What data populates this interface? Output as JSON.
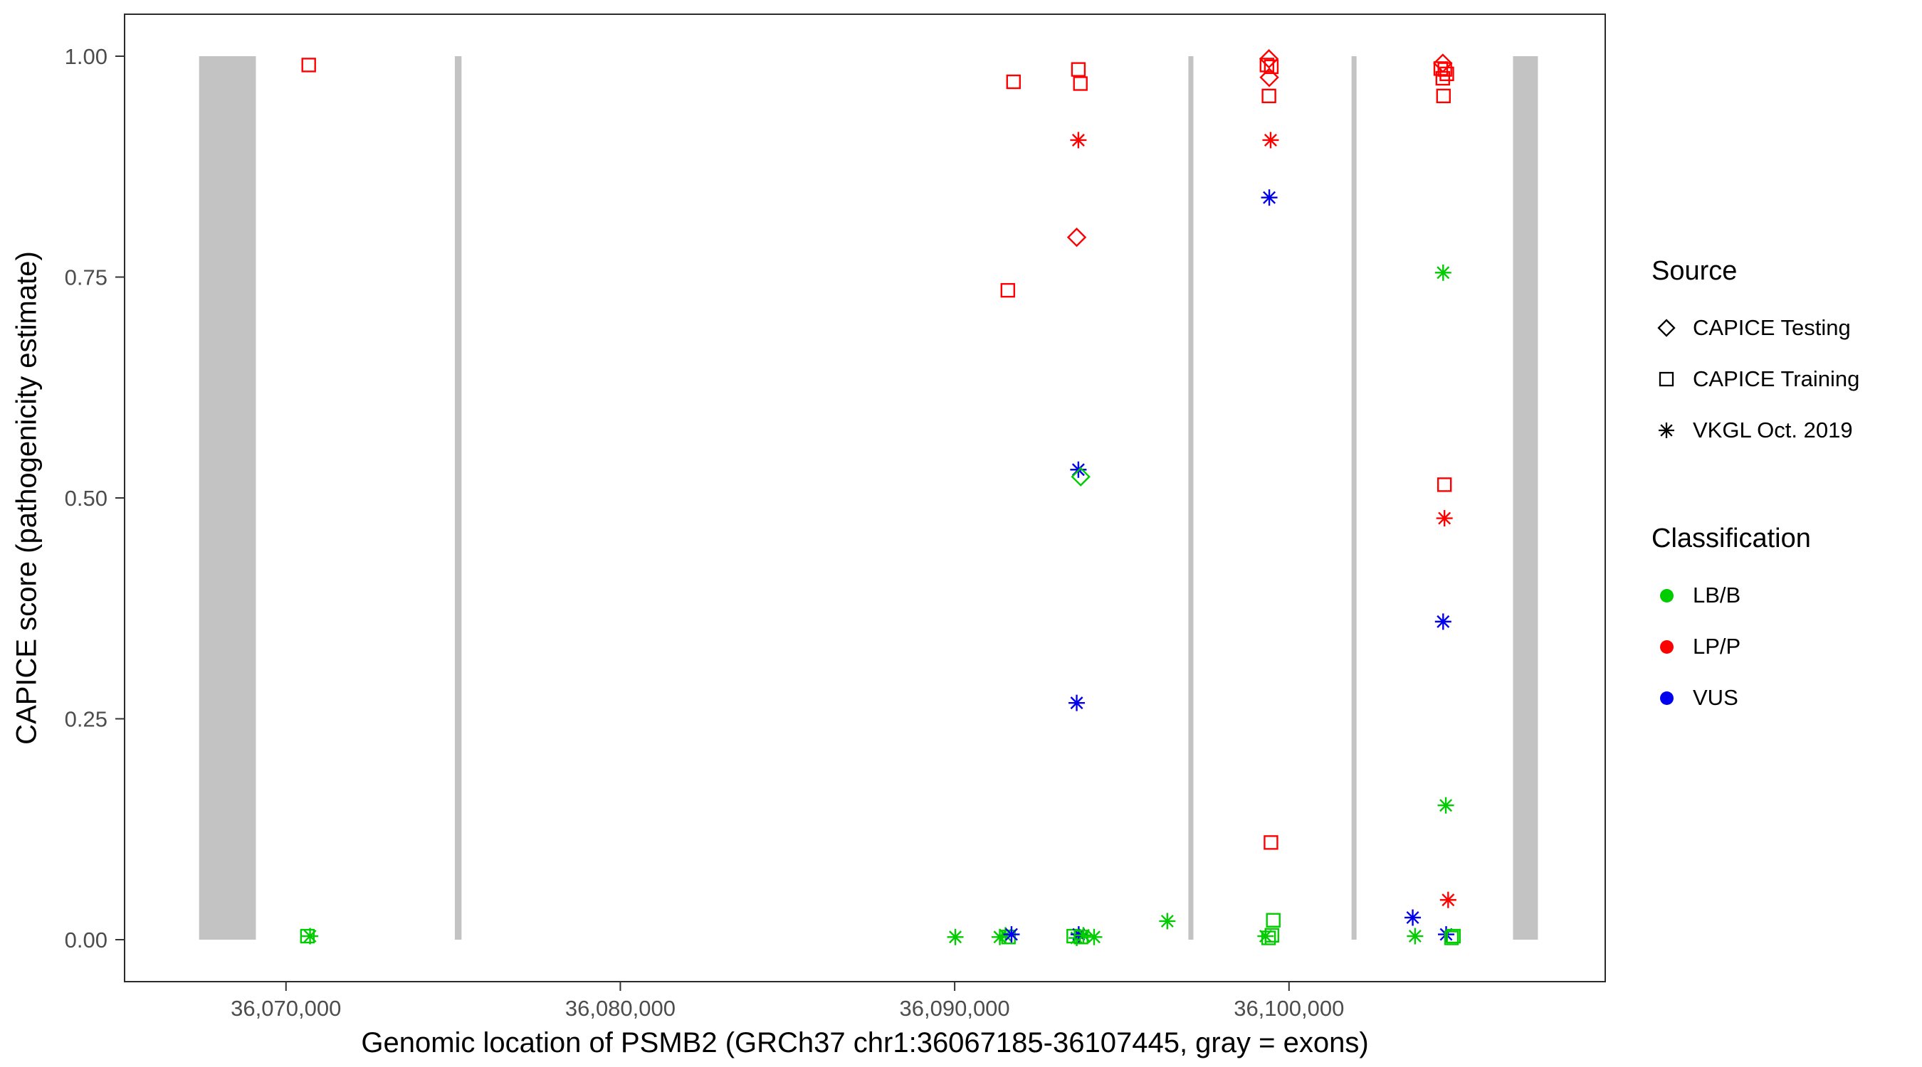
{
  "figure": {
    "background": "#FFFFFF"
  },
  "colors": {
    "LB/B": "#00CC00",
    "LP/P": "#FF0000",
    "VUS": "#0000EE",
    "exon": "#C3C3C3",
    "panel_border": "#2B2B2B",
    "tick_label": "#4D4D4D"
  },
  "legend": {
    "source": {
      "title": "Source",
      "items": [
        {
          "label": "CAPICE Testing",
          "shape": "diamond"
        },
        {
          "label": "CAPICE Training",
          "shape": "square"
        },
        {
          "label": "VKGL Oct. 2019",
          "shape": "asterisk"
        }
      ]
    },
    "classification": {
      "title": "Classification",
      "items": [
        {
          "label": "LB/B",
          "color": "#00CC00"
        },
        {
          "label": "LP/P",
          "color": "#FF0000"
        },
        {
          "label": "VUS",
          "color": "#0000EE"
        }
      ]
    }
  },
  "chart_data": {
    "type": "scatter",
    "title": "",
    "xlabel": "Genomic location of PSMB2 (GRCh37 chr1:36067185-36107445, gray = exons)",
    "ylabel": "CAPICE score (pathogenicity estimate)",
    "x_range": [
      36065172,
      36109458
    ],
    "y_range": [
      -0.0475,
      1.0475
    ],
    "x_ticks": [
      {
        "value": 36070000,
        "label": "36,070,000"
      },
      {
        "value": 36080000,
        "label": "36,080,000"
      },
      {
        "value": 36090000,
        "label": "36,090,000"
      },
      {
        "value": 36100000,
        "label": "36,100,000"
      }
    ],
    "y_ticks": [
      {
        "value": 0.0,
        "label": "0.00"
      },
      {
        "value": 0.25,
        "label": "0.25"
      },
      {
        "value": 0.5,
        "label": "0.50"
      },
      {
        "value": 0.75,
        "label": "0.75"
      },
      {
        "value": 1.0,
        "label": "1.00"
      }
    ],
    "exons": [
      {
        "start": 36067400,
        "end": 36069100
      },
      {
        "start": 36075050,
        "end": 36075250
      },
      {
        "start": 36096990,
        "end": 36097140
      },
      {
        "start": 36101870,
        "end": 36102020
      },
      {
        "start": 36106700,
        "end": 36107445
      }
    ],
    "points": [
      {
        "x": 36070680,
        "y": 0.99,
        "source": "CAPICE Training",
        "classification": "LP/P"
      },
      {
        "x": 36070640,
        "y": 0.004,
        "source": "CAPICE Training",
        "classification": "LB/B"
      },
      {
        "x": 36070720,
        "y": 0.004,
        "source": "VKGL Oct. 2019",
        "classification": "LB/B"
      },
      {
        "x": 36090020,
        "y": 0.003,
        "source": "VKGL Oct. 2019",
        "classification": "LB/B"
      },
      {
        "x": 36091760,
        "y": 0.971,
        "source": "CAPICE Training",
        "classification": "LP/P"
      },
      {
        "x": 36091590,
        "y": 0.735,
        "source": "CAPICE Training",
        "classification": "LP/P"
      },
      {
        "x": 36091350,
        "y": 0.003,
        "source": "VKGL Oct. 2019",
        "classification": "LB/B"
      },
      {
        "x": 36091520,
        "y": 0.005,
        "source": "VKGL Oct. 2019",
        "classification": "LB/B"
      },
      {
        "x": 36091610,
        "y": 0.003,
        "source": "CAPICE Training",
        "classification": "LB/B"
      },
      {
        "x": 36091700,
        "y": 0.006,
        "source": "VKGL Oct. 2019",
        "classification": "VUS"
      },
      {
        "x": 36093700,
        "y": 0.985,
        "source": "CAPICE Training",
        "classification": "LP/P"
      },
      {
        "x": 36093760,
        "y": 0.969,
        "source": "CAPICE Training",
        "classification": "LP/P"
      },
      {
        "x": 36093700,
        "y": 0.905,
        "source": "VKGL Oct. 2019",
        "classification": "LP/P"
      },
      {
        "x": 36093650,
        "y": 0.795,
        "source": "CAPICE Testing",
        "classification": "LP/P"
      },
      {
        "x": 36093700,
        "y": 0.532,
        "source": "VKGL Oct. 2019",
        "classification": "VUS"
      },
      {
        "x": 36093770,
        "y": 0.524,
        "source": "CAPICE Testing",
        "classification": "LB/B"
      },
      {
        "x": 36093650,
        "y": 0.268,
        "source": "VKGL Oct. 2019",
        "classification": "VUS"
      },
      {
        "x": 36093560,
        "y": 0.004,
        "source": "CAPICE Training",
        "classification": "LB/B"
      },
      {
        "x": 36093650,
        "y": 0.002,
        "source": "VKGL Oct. 2019",
        "classification": "LB/B"
      },
      {
        "x": 36093710,
        "y": 0.006,
        "source": "VKGL Oct. 2019",
        "classification": "VUS"
      },
      {
        "x": 36093780,
        "y": 0.003,
        "source": "CAPICE Training",
        "classification": "LB/B"
      },
      {
        "x": 36093850,
        "y": 0.005,
        "source": "VKGL Oct. 2019",
        "classification": "LB/B"
      },
      {
        "x": 36094170,
        "y": 0.003,
        "source": "VKGL Oct. 2019",
        "classification": "LB/B"
      },
      {
        "x": 36096360,
        "y": 0.021,
        "source": "VKGL Oct. 2019",
        "classification": "LB/B"
      },
      {
        "x": 36099400,
        "y": 0.997,
        "source": "CAPICE Testing",
        "classification": "LP/P"
      },
      {
        "x": 36099340,
        "y": 0.99,
        "source": "CAPICE Training",
        "classification": "LP/P"
      },
      {
        "x": 36099470,
        "y": 0.988,
        "source": "CAPICE Training",
        "classification": "LP/P"
      },
      {
        "x": 36099410,
        "y": 0.976,
        "source": "CAPICE Testing",
        "classification": "LP/P"
      },
      {
        "x": 36099400,
        "y": 0.955,
        "source": "CAPICE Training",
        "classification": "LP/P"
      },
      {
        "x": 36099450,
        "y": 0.905,
        "source": "VKGL Oct. 2019",
        "classification": "LP/P"
      },
      {
        "x": 36099410,
        "y": 0.84,
        "source": "VKGL Oct. 2019",
        "classification": "VUS"
      },
      {
        "x": 36099460,
        "y": 0.11,
        "source": "CAPICE Training",
        "classification": "LP/P"
      },
      {
        "x": 36099530,
        "y": 0.022,
        "source": "CAPICE Training",
        "classification": "LB/B"
      },
      {
        "x": 36099300,
        "y": 0.004,
        "source": "VKGL Oct. 2019",
        "classification": "LB/B"
      },
      {
        "x": 36099390,
        "y": 0.002,
        "source": "CAPICE Training",
        "classification": "LB/B"
      },
      {
        "x": 36099490,
        "y": 0.005,
        "source": "CAPICE Training",
        "classification": "LB/B"
      },
      {
        "x": 36104600,
        "y": 0.992,
        "source": "CAPICE Testing",
        "classification": "LP/P"
      },
      {
        "x": 36104540,
        "y": 0.986,
        "source": "CAPICE Training",
        "classification": "LP/P"
      },
      {
        "x": 36104660,
        "y": 0.985,
        "source": "CAPICE Training",
        "classification": "LP/P"
      },
      {
        "x": 36104720,
        "y": 0.98,
        "source": "CAPICE Training",
        "classification": "LP/P"
      },
      {
        "x": 36104600,
        "y": 0.975,
        "source": "CAPICE Training",
        "classification": "LP/P"
      },
      {
        "x": 36104620,
        "y": 0.955,
        "source": "CAPICE Training",
        "classification": "LP/P"
      },
      {
        "x": 36104610,
        "y": 0.755,
        "source": "VKGL Oct. 2019",
        "classification": "LB/B"
      },
      {
        "x": 36104650,
        "y": 0.515,
        "source": "CAPICE Training",
        "classification": "LP/P"
      },
      {
        "x": 36104650,
        "y": 0.477,
        "source": "VKGL Oct. 2019",
        "classification": "LP/P"
      },
      {
        "x": 36104610,
        "y": 0.36,
        "source": "VKGL Oct. 2019",
        "classification": "VUS"
      },
      {
        "x": 36104690,
        "y": 0.152,
        "source": "VKGL Oct. 2019",
        "classification": "LB/B"
      },
      {
        "x": 36103700,
        "y": 0.025,
        "source": "VKGL Oct. 2019",
        "classification": "VUS"
      },
      {
        "x": 36104760,
        "y": 0.045,
        "source": "VKGL Oct. 2019",
        "classification": "LP/P"
      },
      {
        "x": 36103770,
        "y": 0.004,
        "source": "VKGL Oct. 2019",
        "classification": "LB/B"
      },
      {
        "x": 36104700,
        "y": 0.006,
        "source": "VKGL Oct. 2019",
        "classification": "VUS"
      },
      {
        "x": 36104860,
        "y": 0.002,
        "source": "CAPICE Training",
        "classification": "LB/B"
      },
      {
        "x": 36104920,
        "y": 0.004,
        "source": "CAPICE Training",
        "classification": "LB/B"
      }
    ]
  }
}
